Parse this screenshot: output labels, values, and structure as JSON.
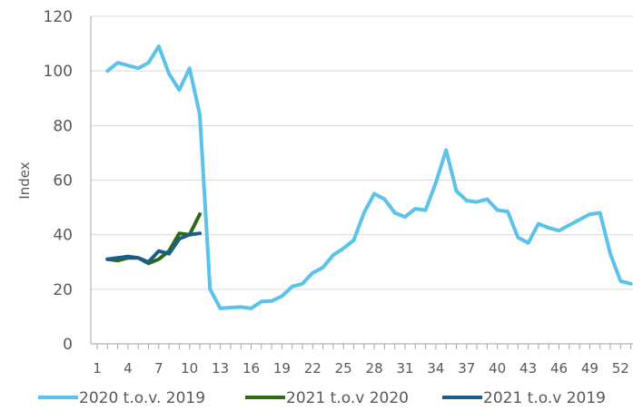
{
  "chart_data": {
    "type": "line",
    "ylabel": "Index",
    "ylim": [
      0,
      120
    ],
    "yticks": [
      "0",
      "20",
      "40",
      "60",
      "80",
      "100",
      "120"
    ],
    "xlim": [
      1,
      53
    ],
    "xticks": [
      "1",
      "4",
      "7",
      "10",
      "13",
      "16",
      "19",
      "22",
      "25",
      "28",
      "31",
      "34",
      "37",
      "40",
      "43",
      "46",
      "49",
      "52"
    ],
    "grid": "horizontal",
    "legend_position": "bottom",
    "series": [
      {
        "name": "2020 t.o.v. 2019",
        "color": "#5bc2ea",
        "x": [
          2,
          3,
          4,
          5,
          6,
          7,
          8,
          9,
          10,
          11,
          12,
          13,
          14,
          15,
          16,
          17,
          18,
          19,
          20,
          21,
          22,
          23,
          24,
          25,
          26,
          27,
          28,
          29,
          30,
          31,
          32,
          33,
          34,
          35,
          36,
          37,
          38,
          39,
          40,
          41,
          42,
          43,
          44,
          45,
          46,
          47,
          48,
          49,
          50,
          51,
          52,
          53
        ],
        "values": [
          100,
          103,
          102,
          101,
          103,
          109,
          99,
          93,
          101,
          84,
          20,
          13,
          13.3,
          13.5,
          13,
          15.5,
          15.7,
          17.5,
          21,
          22,
          26,
          28,
          32.5,
          35,
          38,
          48,
          55,
          53,
          48,
          46.5,
          49.5,
          49,
          59,
          71,
          56,
          52.5,
          52,
          53,
          49,
          48.5,
          39,
          37,
          44,
          42.5,
          41.5,
          43.5,
          45.5,
          47.5,
          48,
          33,
          23,
          22
        ]
      },
      {
        "name": "2021 t.o.v 2020",
        "color": "#2d6a14",
        "x": [
          2,
          3,
          4,
          5,
          6,
          7,
          8,
          9,
          10,
          11
        ],
        "values": [
          31,
          30.5,
          31.5,
          31.5,
          29.5,
          31,
          34,
          40.5,
          40,
          47.5
        ]
      },
      {
        "name": "2021 t.o.v 2019",
        "color": "#1b5d8a",
        "x": [
          2,
          3,
          4,
          5,
          6,
          7,
          8,
          9,
          10,
          11
        ],
        "values": [
          31,
          31.5,
          32,
          31.5,
          30,
          34,
          33,
          38.5,
          40,
          40.5
        ]
      }
    ]
  }
}
